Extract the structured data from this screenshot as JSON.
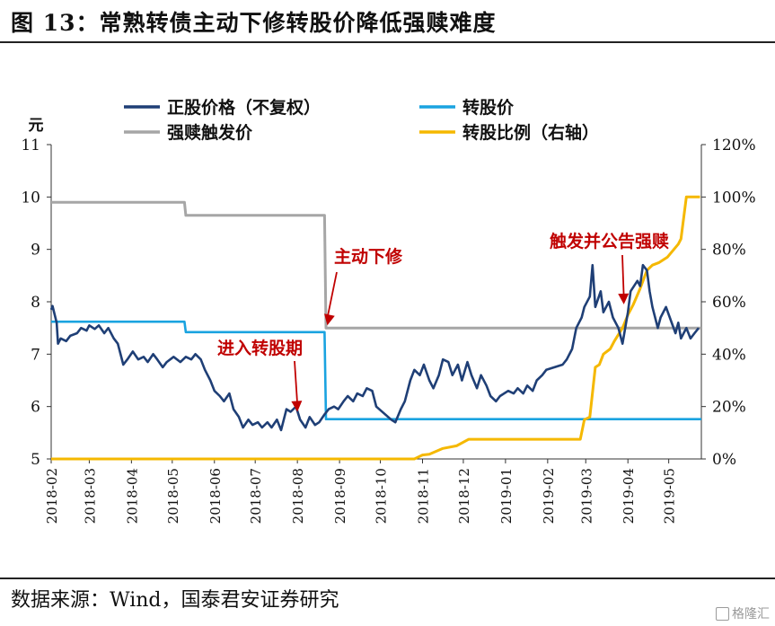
{
  "figure": {
    "title": "图 13：常熟转债主动下修转股价降低强赎难度",
    "source": "数据来源：Wind，国泰君安证券研究",
    "watermark": "格隆汇"
  },
  "chart_data": {
    "type": "line",
    "left_axis": {
      "unit": "元",
      "ylim": [
        5,
        11
      ],
      "ticks": [
        "5",
        "6",
        "7",
        "8",
        "9",
        "10",
        "11"
      ]
    },
    "right_axis": {
      "ylim": [
        0,
        120
      ],
      "ticks": [
        "0%",
        "20%",
        "40%",
        "60%",
        "80%",
        "100%",
        "120%"
      ]
    },
    "x_ticks": [
      "2018-02",
      "2018-03",
      "2018-04",
      "2018-05",
      "2018-06",
      "2018-07",
      "2018-08",
      "2018-09",
      "2018-10",
      "2018-11",
      "2018-12",
      "2019-01",
      "2019-02",
      "2019-03",
      "2019-04",
      "2019-05"
    ],
    "x_range": [
      "2018-02-01",
      "2019-05-25"
    ],
    "grid": false,
    "legend": [
      {
        "name": "正股价格（不复权）",
        "color": "#1f3f76"
      },
      {
        "name": "转股价",
        "color": "#1aa3e0"
      },
      {
        "name": "强赎触发价",
        "color": "#a6a6a6"
      },
      {
        "name": "转股比例（右轴）",
        "color": "#f5b800"
      }
    ],
    "annotations": [
      {
        "text": "主动下修",
        "color": "#c00000",
        "target": [
          "2018-08-23",
          7.55
        ]
      },
      {
        "text": "进入转股期",
        "color": "#c00000",
        "target": [
          "2018-08-01",
          5.9
        ]
      },
      {
        "text": "触发并公告强赎",
        "color": "#c00000",
        "target": [
          "2019-03-29",
          7.95
        ]
      }
    ],
    "series": [
      {
        "name": "正股价格（不复权）",
        "axis": "left",
        "color": "#1f3f76",
        "points": [
          [
            "2018-02-01",
            7.85
          ],
          [
            "2018-02-02",
            7.92
          ],
          [
            "2018-02-05",
            7.6
          ],
          [
            "2018-02-06",
            7.2
          ],
          [
            "2018-02-08",
            7.3
          ],
          [
            "2018-02-12",
            7.25
          ],
          [
            "2018-02-15",
            7.35
          ],
          [
            "2018-02-20",
            7.4
          ],
          [
            "2018-02-23",
            7.5
          ],
          [
            "2018-02-27",
            7.45
          ],
          [
            "2018-03-01",
            7.55
          ],
          [
            "2018-03-05",
            7.48
          ],
          [
            "2018-03-08",
            7.55
          ],
          [
            "2018-03-12",
            7.4
          ],
          [
            "2018-03-15",
            7.5
          ],
          [
            "2018-03-19",
            7.3
          ],
          [
            "2018-03-22",
            7.2
          ],
          [
            "2018-03-26",
            6.8
          ],
          [
            "2018-03-29",
            6.9
          ],
          [
            "2018-04-02",
            7.05
          ],
          [
            "2018-04-06",
            6.9
          ],
          [
            "2018-04-10",
            6.95
          ],
          [
            "2018-04-13",
            6.85
          ],
          [
            "2018-04-17",
            7.0
          ],
          [
            "2018-04-20",
            6.9
          ],
          [
            "2018-04-24",
            6.75
          ],
          [
            "2018-04-27",
            6.85
          ],
          [
            "2018-05-02",
            6.95
          ],
          [
            "2018-05-07",
            6.85
          ],
          [
            "2018-05-11",
            6.95
          ],
          [
            "2018-05-15",
            6.9
          ],
          [
            "2018-05-18",
            7.0
          ],
          [
            "2018-05-22",
            6.9
          ],
          [
            "2018-05-25",
            6.7
          ],
          [
            "2018-05-29",
            6.5
          ],
          [
            "2018-06-01",
            6.3
          ],
          [
            "2018-06-05",
            6.2
          ],
          [
            "2018-06-08",
            6.1
          ],
          [
            "2018-06-12",
            6.25
          ],
          [
            "2018-06-15",
            5.95
          ],
          [
            "2018-06-19",
            5.8
          ],
          [
            "2018-06-22",
            5.6
          ],
          [
            "2018-06-26",
            5.75
          ],
          [
            "2018-06-29",
            5.65
          ],
          [
            "2018-07-03",
            5.7
          ],
          [
            "2018-07-06",
            5.6
          ],
          [
            "2018-07-10",
            5.7
          ],
          [
            "2018-07-13",
            5.6
          ],
          [
            "2018-07-17",
            5.75
          ],
          [
            "2018-07-20",
            5.55
          ],
          [
            "2018-07-24",
            5.95
          ],
          [
            "2018-07-27",
            5.9
          ],
          [
            "2018-07-31",
            6.0
          ],
          [
            "2018-08-03",
            5.75
          ],
          [
            "2018-08-07",
            5.6
          ],
          [
            "2018-08-10",
            5.8
          ],
          [
            "2018-08-14",
            5.65
          ],
          [
            "2018-08-17",
            5.7
          ],
          [
            "2018-08-21",
            5.85
          ],
          [
            "2018-08-24",
            5.95
          ],
          [
            "2018-08-28",
            6.0
          ],
          [
            "2018-08-31",
            5.95
          ],
          [
            "2018-09-04",
            6.1
          ],
          [
            "2018-09-07",
            6.2
          ],
          [
            "2018-09-11",
            6.1
          ],
          [
            "2018-09-14",
            6.25
          ],
          [
            "2018-09-18",
            6.2
          ],
          [
            "2018-09-21",
            6.35
          ],
          [
            "2018-09-25",
            6.3
          ],
          [
            "2018-09-28",
            6.0
          ],
          [
            "2018-10-09",
            5.75
          ],
          [
            "2018-10-12",
            5.7
          ],
          [
            "2018-10-16",
            5.95
          ],
          [
            "2018-10-19",
            6.1
          ],
          [
            "2018-10-23",
            6.5
          ],
          [
            "2018-10-26",
            6.7
          ],
          [
            "2018-10-30",
            6.6
          ],
          [
            "2018-11-02",
            6.8
          ],
          [
            "2018-11-06",
            6.5
          ],
          [
            "2018-11-09",
            6.35
          ],
          [
            "2018-11-13",
            6.6
          ],
          [
            "2018-11-16",
            6.9
          ],
          [
            "2018-11-20",
            6.85
          ],
          [
            "2018-11-23",
            6.6
          ],
          [
            "2018-11-27",
            6.8
          ],
          [
            "2018-11-30",
            6.5
          ],
          [
            "2018-12-04",
            6.85
          ],
          [
            "2018-12-07",
            6.6
          ],
          [
            "2018-12-11",
            6.35
          ],
          [
            "2018-12-14",
            6.6
          ],
          [
            "2018-12-18",
            6.4
          ],
          [
            "2018-12-21",
            6.2
          ],
          [
            "2018-12-25",
            6.1
          ],
          [
            "2018-12-28",
            6.2
          ],
          [
            "2019-01-03",
            6.3
          ],
          [
            "2019-01-07",
            6.25
          ],
          [
            "2019-01-10",
            6.35
          ],
          [
            "2019-01-14",
            6.25
          ],
          [
            "2019-01-17",
            6.4
          ],
          [
            "2019-01-21",
            6.3
          ],
          [
            "2019-01-24",
            6.5
          ],
          [
            "2019-01-28",
            6.6
          ],
          [
            "2019-01-31",
            6.7
          ],
          [
            "2019-02-12",
            6.8
          ],
          [
            "2019-02-15",
            6.9
          ],
          [
            "2019-02-19",
            7.1
          ],
          [
            "2019-02-22",
            7.5
          ],
          [
            "2019-02-26",
            7.7
          ],
          [
            "2019-02-28",
            7.9
          ],
          [
            "2019-03-04",
            8.1
          ],
          [
            "2019-03-06",
            8.7
          ],
          [
            "2019-03-08",
            7.9
          ],
          [
            "2019-03-12",
            8.2
          ],
          [
            "2019-03-14",
            7.8
          ],
          [
            "2019-03-18",
            8.0
          ],
          [
            "2019-03-21",
            7.7
          ],
          [
            "2019-03-25",
            7.5
          ],
          [
            "2019-03-28",
            7.2
          ],
          [
            "2019-04-01",
            7.8
          ],
          [
            "2019-04-03",
            8.2
          ],
          [
            "2019-04-08",
            8.4
          ],
          [
            "2019-04-10",
            8.3
          ],
          [
            "2019-04-12",
            8.7
          ],
          [
            "2019-04-15",
            8.6
          ],
          [
            "2019-04-17",
            8.2
          ],
          [
            "2019-04-19",
            7.9
          ],
          [
            "2019-04-23",
            7.5
          ],
          [
            "2019-04-25",
            7.7
          ],
          [
            "2019-04-29",
            7.9
          ],
          [
            "2019-05-06",
            7.4
          ],
          [
            "2019-05-08",
            7.6
          ],
          [
            "2019-05-10",
            7.3
          ],
          [
            "2019-05-14",
            7.5
          ],
          [
            "2019-05-17",
            7.3
          ],
          [
            "2019-05-20",
            7.4
          ],
          [
            "2019-05-23",
            7.5
          ]
        ]
      },
      {
        "name": "转股价",
        "axis": "left",
        "color": "#1aa3e0",
        "points": [
          [
            "2018-02-01",
            7.62
          ],
          [
            "2018-05-10",
            7.62
          ],
          [
            "2018-05-11",
            7.42
          ],
          [
            "2018-08-21",
            7.42
          ],
          [
            "2018-08-22",
            5.76
          ],
          [
            "2019-05-25",
            5.76
          ]
        ]
      },
      {
        "name": "强赎触发价",
        "axis": "left",
        "color": "#a6a6a6",
        "points": [
          [
            "2018-02-01",
            9.9
          ],
          [
            "2018-05-10",
            9.9
          ],
          [
            "2018-05-11",
            9.65
          ],
          [
            "2018-08-21",
            9.65
          ],
          [
            "2018-08-22",
            7.5
          ],
          [
            "2019-05-25",
            7.5
          ]
        ]
      },
      {
        "name": "转股比例（右轴）",
        "axis": "right",
        "color": "#f5b800",
        "points": [
          [
            "2018-02-01",
            0
          ],
          [
            "2018-10-26",
            0
          ],
          [
            "2018-11-01",
            1.5
          ],
          [
            "2018-11-06",
            1.8
          ],
          [
            "2018-11-16",
            4.0
          ],
          [
            "2018-11-26",
            5.0
          ],
          [
            "2018-12-05",
            7.5
          ],
          [
            "2019-02-25",
            7.5
          ],
          [
            "2019-02-28",
            15
          ],
          [
            "2019-03-04",
            16
          ],
          [
            "2019-03-08",
            35
          ],
          [
            "2019-03-11",
            36
          ],
          [
            "2019-03-14",
            40
          ],
          [
            "2019-03-19",
            42
          ],
          [
            "2019-03-22",
            45
          ],
          [
            "2019-03-28",
            50
          ],
          [
            "2019-04-01",
            55
          ],
          [
            "2019-04-05",
            59
          ],
          [
            "2019-04-10",
            65
          ],
          [
            "2019-04-15",
            72
          ],
          [
            "2019-04-19",
            74
          ],
          [
            "2019-04-24",
            75
          ],
          [
            "2019-04-30",
            77
          ],
          [
            "2019-05-08",
            82
          ],
          [
            "2019-05-10",
            84
          ],
          [
            "2019-05-14",
            100
          ],
          [
            "2019-05-24",
            100
          ]
        ]
      }
    ]
  }
}
